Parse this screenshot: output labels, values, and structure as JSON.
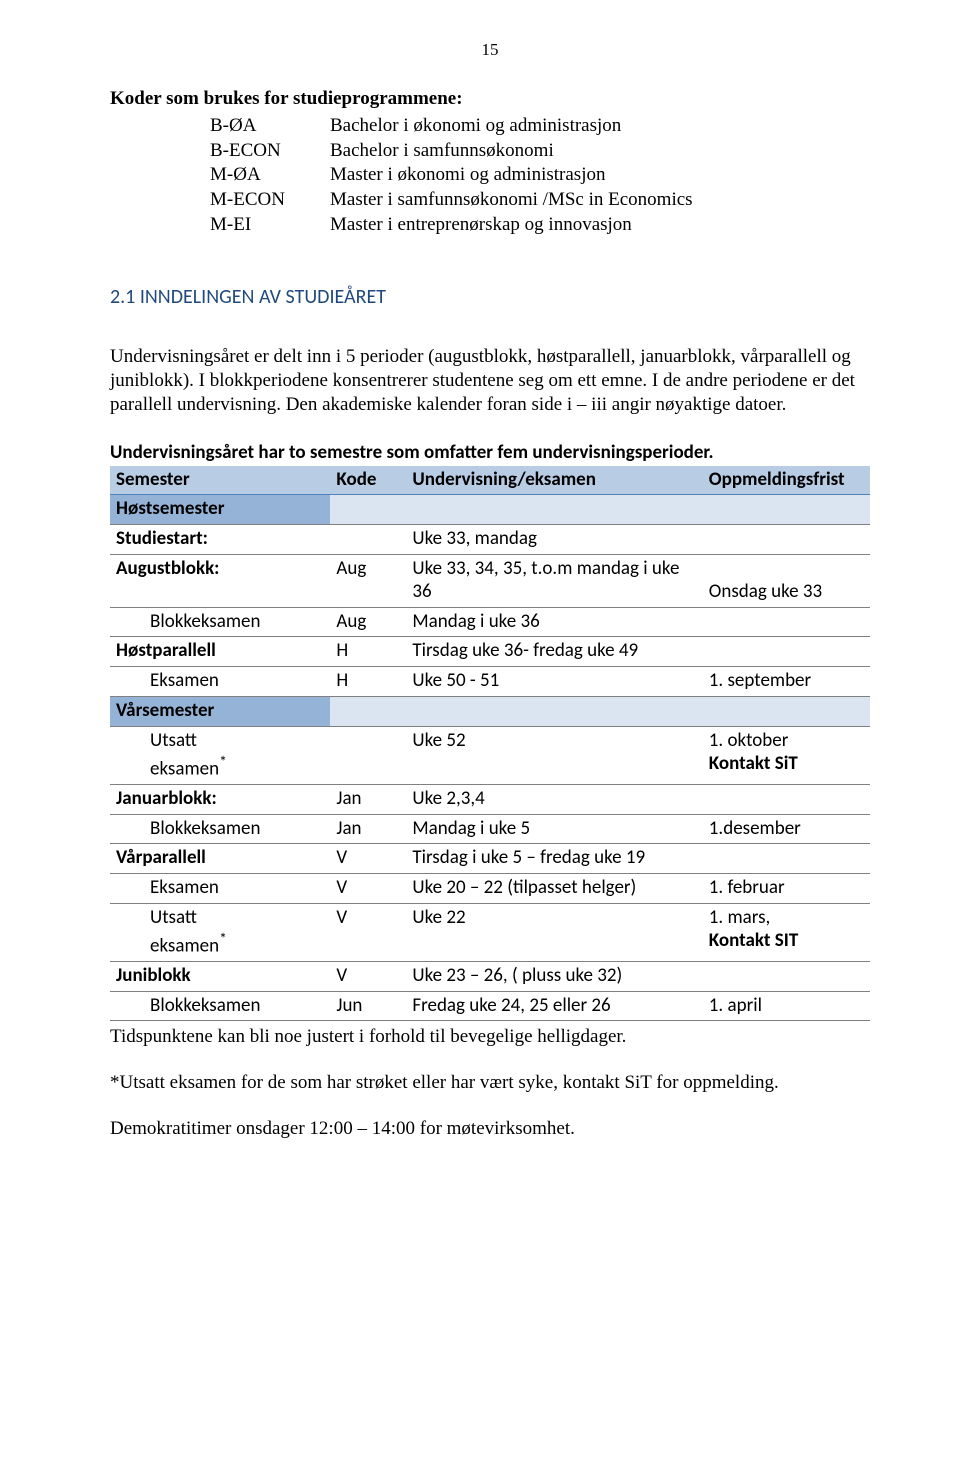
{
  "page_number": "15",
  "koder": {
    "title": "Koder  som brukes for studieprogrammene:",
    "items": [
      {
        "code": "B-ØA",
        "desc": "Bachelor i økonomi og administrasjon"
      },
      {
        "code": "B-ECON",
        "desc": "Bachelor i samfunnsøkonomi"
      },
      {
        "code": "M-ØA",
        "desc": "Master i økonomi og administrasjon"
      },
      {
        "code": "M-ECON",
        "desc": "Master i samfunnsøkonomi /MSc in Economics"
      },
      {
        "code": "M-EI",
        "desc": "Master i entreprenørskap og innovasjon"
      }
    ]
  },
  "section_heading": "2.1  INNDELINGEN AV STUDIEÅRET",
  "para1": "Undervisningsåret er delt inn i 5 perioder (augustblokk, høstparallell, januarblokk, vårparallell og juniblokk).  I blokkperiodene konsentrerer studentene seg om ett emne. I de andre periodene er det parallell undervisning. Den akademiske kalender foran side i – iii  angir nøyaktige datoer.",
  "table_intro": "Undervisningsåret har to semestre som omfatter fem undervisningsperioder.",
  "table": {
    "headers": {
      "sem": "Semester",
      "kode": "Kode",
      "und": "Undervisning/eksamen",
      "opp": "Oppmeldingsfrist"
    },
    "hostsemester_label": "Høstsemester",
    "varsemester_label": "Vårsemester",
    "rows": {
      "studiestart": {
        "sem": "Studiestart:",
        "kode": "",
        "und": "Uke 33, mandag",
        "opp": ""
      },
      "augustblokk": {
        "sem": "Augustblokk:",
        "kode": "Aug",
        "und": "Uke 33, 34, 35, t.o.m mandag i uke 36",
        "opp": "Onsdag uke 33"
      },
      "blokkeks_aug": {
        "sem": "Blokkeksamen",
        "kode": "Aug",
        "und": "Mandag i uke 36",
        "opp": ""
      },
      "hostparallell": {
        "sem": "Høstparallell",
        "kode": "H",
        "und": "Tirsdag  uke 36- fredag uke 49",
        "opp": ""
      },
      "eksamen_h": {
        "sem": "Eksamen",
        "kode": "H",
        "und": "Uke 50 - 51",
        "opp": "1. september"
      },
      "utsatt_h": {
        "sem": "Utsatt eksamen*",
        "kode": "",
        "und": "Uke 52",
        "opp": "1. oktober Kontakt SiT"
      },
      "januarblokk": {
        "sem": "Januarblokk:",
        "kode": "Jan",
        "und": "Uke 2,3,4",
        "opp": ""
      },
      "blokkeks_jan": {
        "sem": "Blokkeksamen",
        "kode": "Jan",
        "und": "Mandag i uke 5",
        "opp": "1.desember"
      },
      "varparallell": {
        "sem": "Vårparallell",
        "kode": "V",
        "und": "Tirsdag i uke 5 – fredag uke 19",
        "opp": ""
      },
      "eksamen_v": {
        "sem": "Eksamen",
        "kode": "V",
        "und": "Uke 20 – 22 (tilpasset helger)",
        "opp": "1. februar"
      },
      "utsatt_v": {
        "sem": "Utsatt eksamen*",
        "kode": "V",
        "und": "Uke 22",
        "opp": "1. mars, Kontakt SIT"
      },
      "juniblokk": {
        "sem": "Juniblokk",
        "kode": "V",
        "und": "Uke 23 – 26, ( pluss uke 32)",
        "opp": ""
      },
      "blokkeks_jun": {
        "sem": "Blokkeksamen",
        "kode": "Jun",
        "und": "Fredag uke 24, 25 eller 26",
        "opp": "1. april"
      }
    }
  },
  "footer1": "Tidspunktene kan bli noe justert i forhold til bevegelige helligdager.",
  "footer2": "*Utsatt eksamen for de som har strøket eller har vært syke, kontakt SiT for oppmelding.",
  "footer3": "Demokratitimer onsdager 12:00 – 14:00 for møtevirksomhet.",
  "colors": {
    "heading_blue": "#1f497d",
    "header_bg": "#b8cce4",
    "section_label_bg": "#95b3d7",
    "section_blank_bg": "#dbe5f1",
    "border": "#808080",
    "header_border": "#4f81bd"
  }
}
